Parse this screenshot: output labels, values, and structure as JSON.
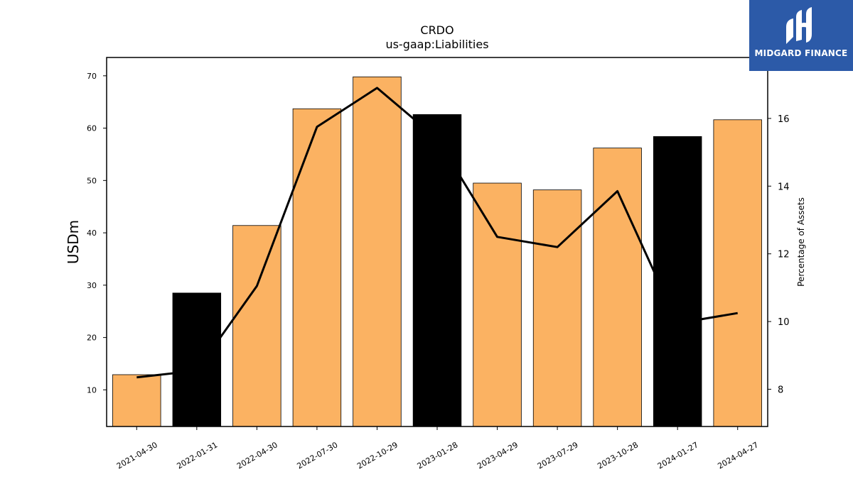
{
  "brand": {
    "name": "MIDGARD FINANCE",
    "color": "#2c5aa8"
  },
  "chart_data": {
    "type": "bar",
    "title": "CRDO",
    "subtitle": "us-gaap:Liabilities",
    "ylabel": "USDm",
    "y2label": "Percentage of Assets",
    "categories": [
      "2021-04-30",
      "2022-01-31",
      "2022-04-30",
      "2022-07-30",
      "2022-10-29",
      "2023-01-28",
      "2023-04-29",
      "2023-07-29",
      "2023-10-28",
      "2024-01-27",
      "2024-04-27"
    ],
    "ylim": [
      3,
      73.5
    ],
    "y2lim": [
      6.9,
      17.8
    ],
    "yticks": [
      10,
      20,
      30,
      40,
      50,
      60,
      70
    ],
    "y2ticks": [
      8,
      10,
      12,
      14,
      16
    ],
    "series": [
      {
        "type": "bar",
        "axis": "left",
        "values": [
          12.9,
          28.5,
          41.4,
          63.7,
          69.8,
          62.6,
          49.5,
          48.2,
          56.2,
          58.4,
          61.6
        ],
        "colors": [
          "#fbb262",
          "#000000",
          "#fbb262",
          "#fbb262",
          "#fbb262",
          "#000000",
          "#fbb262",
          "#fbb262",
          "#fbb262",
          "#000000",
          "#fbb262"
        ]
      },
      {
        "type": "line",
        "axis": "right",
        "color": "#000000",
        "values": [
          8.35,
          8.55,
          11.05,
          15.75,
          16.9,
          15.4,
          12.5,
          12.2,
          13.85,
          9.95,
          10.25
        ]
      }
    ],
    "grid": false,
    "legend": "none"
  }
}
